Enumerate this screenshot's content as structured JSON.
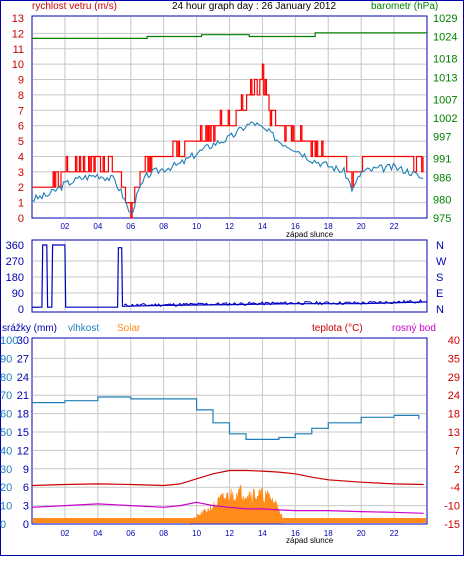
{
  "title": "24 hour graph day : 26 January 2012",
  "x_ticks": [
    "02",
    "04",
    "06",
    "08",
    "10",
    "12",
    "14",
    "16",
    "18",
    "20",
    "22"
  ],
  "sunset_label": "západ slunce",
  "colors": {
    "frame": "#0000b0",
    "grid": "#c8c8c8",
    "wind": "#ff0000",
    "gust": "#ff0000",
    "wind_avg": "#1f7fb8",
    "baro": "#008000",
    "dir": "#0000c0",
    "hum": "#1f7fb8",
    "temp": "#cc0000",
    "dew": "#cc00cc",
    "solar": "#ff8c1a",
    "rain": "#ff8c1a"
  },
  "chart_data": [
    {
      "type": "line",
      "name": "wind",
      "title": "24 hour graph day : 26 January 2012",
      "ylabel_left": "rychlost vetru (m/s)",
      "ylabel_right": "barometr (hPa)",
      "ylim_left": [
        0,
        13
      ],
      "left_ticks": [
        "0",
        "1",
        "2",
        "3",
        "4",
        "5",
        "6",
        "7",
        "8",
        "9",
        "10",
        "11",
        "12",
        "13"
      ],
      "ylim_right": [
        975,
        1029
      ],
      "right_ticks": [
        "975",
        "980",
        "986",
        "991",
        "997",
        "1002",
        "1007",
        "1013",
        "1018",
        "1024",
        "1029"
      ],
      "x_range_hours": [
        0,
        24
      ],
      "series": [
        {
          "name": "rychlost vetru",
          "axis": "left",
          "x": [
            0,
            1,
            2,
            3,
            4,
            5,
            5.5,
            6,
            6.5,
            7,
            8,
            9,
            10,
            11,
            12,
            13,
            13.5,
            14,
            14.5,
            15,
            16,
            17,
            18,
            19,
            19.5,
            20,
            21,
            22,
            23,
            23.8
          ],
          "values": [
            1.2,
            1.5,
            2.2,
            2.6,
            2.8,
            2.5,
            1.5,
            0.2,
            1.8,
            2.8,
            3.2,
            3.5,
            4.2,
            4.8,
            5.2,
            6,
            6.2,
            5.8,
            5.5,
            5,
            4.5,
            3.8,
            3.4,
            3.0,
            1.8,
            3.0,
            3.2,
            3.3,
            3.0,
            2.5
          ]
        },
        {
          "name": "narazy",
          "axis": "left",
          "x": [
            0,
            1,
            2,
            3,
            4,
            5,
            5.5,
            6,
            6.5,
            7,
            8,
            9,
            10,
            11,
            12,
            13,
            13.5,
            14,
            14.5,
            15,
            16,
            17,
            18,
            19,
            19.5,
            20,
            21,
            22,
            23,
            23.8
          ],
          "values": [
            2,
            2.5,
            3.5,
            4,
            4,
            4,
            3,
            0.5,
            3,
            4,
            4.5,
            5,
            6,
            6.5,
            7,
            8,
            9.2,
            10,
            7.5,
            6.5,
            6,
            5,
            4.6,
            4.2,
            3,
            4,
            4.5,
            4.5,
            4.2,
            3.8
          ]
        },
        {
          "name": "barometr",
          "axis": "right",
          "x": [
            0,
            6.8,
            7,
            10,
            10.3,
            13,
            13.2,
            17,
            17.2,
            22,
            24
          ],
          "values": [
            1023.5,
            1023.5,
            1024,
            1024,
            1024.5,
            1024.5,
            1024,
            1024,
            1025,
            1025,
            1025
          ]
        }
      ]
    },
    {
      "type": "line",
      "name": "wind_direction",
      "yticks": [
        "360",
        "270",
        "180",
        "90",
        "0"
      ],
      "right_labels": [
        "N",
        "W",
        "S",
        "E",
        "N"
      ],
      "ylim": [
        0,
        360
      ],
      "series": [
        {
          "name": "smer vetru",
          "x": [
            0,
            0.6,
            0.65,
            0.9,
            0.95,
            1.2,
            1.25,
            2,
            2.05,
            5.2,
            5.25,
            5.45,
            5.5,
            8,
            12,
            16,
            20,
            24
          ],
          "values": [
            10,
            10,
            360,
            360,
            10,
            10,
            360,
            360,
            10,
            10,
            345,
            345,
            15,
            20,
            25,
            30,
            30,
            40
          ]
        }
      ]
    },
    {
      "type": "line",
      "name": "rain_humidity_temp",
      "labels": [
        "srážky (mm)",
        "vlhkost",
        "Solar",
        "teplota (°C)",
        "rosný bod"
      ],
      "yticks_rain": [
        "0",
        "3",
        "6",
        "9",
        "12",
        "15",
        "18",
        "21",
        "24",
        "27",
        "30"
      ],
      "yticks_hum": [
        "0",
        "10",
        "20",
        "30",
        "40",
        "50",
        "60",
        "70",
        "80",
        "90",
        "100"
      ],
      "yticks_temp": [
        "-15",
        "-10",
        "-4",
        "2",
        "7",
        "13",
        "18",
        "24",
        "29",
        "35",
        "40"
      ],
      "ylim_hum": [
        0,
        100
      ],
      "ylim_temp": [
        -15,
        40
      ],
      "series": [
        {
          "name": "vlhkost",
          "axis": "hum",
          "x": [
            0,
            2,
            4,
            6,
            7.5,
            9,
            10,
            11,
            12,
            13,
            14,
            15,
            16,
            17,
            18,
            20,
            22,
            23.5
          ],
          "values": [
            66,
            67,
            69,
            68,
            68,
            68,
            62,
            55,
            49,
            46,
            46,
            47,
            49,
            52,
            55,
            58,
            59,
            57
          ]
        },
        {
          "name": "teplota",
          "axis": "temp",
          "x": [
            0,
            2,
            4,
            6,
            8,
            9,
            10,
            11,
            12,
            13,
            14,
            15,
            16,
            17,
            18,
            20,
            22,
            23.8
          ],
          "values": [
            -3.5,
            -3.2,
            -3.0,
            -3.2,
            -3.5,
            -3,
            -1.5,
            0,
            1,
            1,
            0.8,
            0.5,
            0,
            -1,
            -1.8,
            -2.5,
            -3,
            -3.2
          ]
        },
        {
          "name": "rosný bod",
          "axis": "temp",
          "x": [
            0,
            2,
            4,
            6,
            8,
            9,
            10,
            11,
            12,
            13,
            14,
            15,
            16,
            18,
            20,
            22,
            23.8
          ],
          "values": [
            -10,
            -9.5,
            -9,
            -9.5,
            -10,
            -9.5,
            -8.5,
            -9.5,
            -10,
            -10.5,
            -10.5,
            -10.8,
            -11,
            -11,
            -11.3,
            -11.5,
            -11.8
          ]
        },
        {
          "name": "Solar",
          "axis": "hum",
          "x": [
            9.5,
            10,
            11,
            11.5,
            12,
            12.5,
            13,
            13.5,
            14,
            14.5,
            15,
            15.3
          ],
          "values": [
            0,
            5,
            12,
            17,
            20,
            22,
            22,
            21,
            20,
            18,
            12,
            0
          ]
        },
        {
          "name": "srážky",
          "axis": "rain",
          "x": [
            0,
            24
          ],
          "values": [
            0,
            0
          ]
        }
      ]
    }
  ]
}
